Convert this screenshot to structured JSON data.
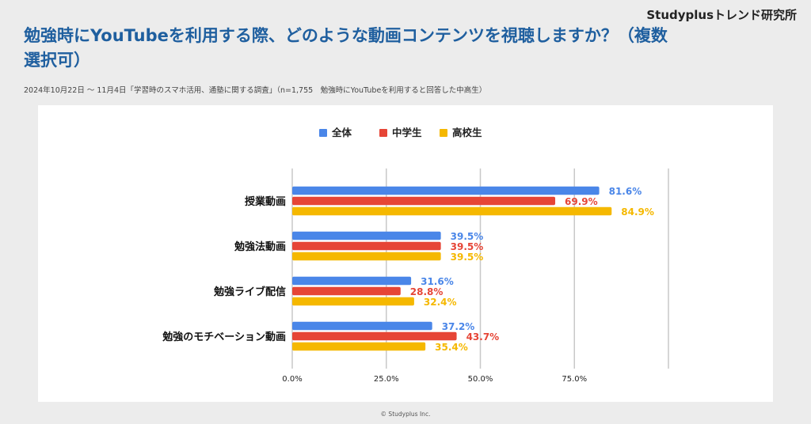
{
  "brand": "Studyplusトレンド研究所",
  "title": "勉強時にYouTubeを利用する際、どのような動画コンテンツを視聴しますか？（複数選択可）",
  "subtitle": "2024年10月22日 〜 11月4日「学習時のスマホ活用、通塾に関する調査」（n=1,755　勉強時にYouTubeを利用すると回答した中高生）",
  "footer": "© Studyplus Inc.",
  "colors": {
    "all": "#4a86e8",
    "junior": "#e64536",
    "senior": "#f5b800"
  },
  "chart_data": {
    "type": "bar",
    "orientation": "horizontal",
    "categories": [
      "授業動画",
      "勉強法動画",
      "勉強ライブ配信",
      "勉強のモチベーション動画"
    ],
    "series": [
      {
        "name": "全体",
        "values": [
          81.6,
          39.5,
          31.6,
          37.2
        ]
      },
      {
        "name": "中学生",
        "values": [
          69.9,
          39.5,
          28.8,
          43.7
        ]
      },
      {
        "name": "高校生",
        "values": [
          84.9,
          39.5,
          32.4,
          35.4
        ]
      }
    ],
    "xlim": [
      0,
      100
    ],
    "xticks": [
      0,
      25,
      50,
      75
    ],
    "xtick_labels": [
      "0.0%",
      "25.0%",
      "50.0%",
      "75.0%"
    ],
    "value_suffix": "%",
    "grid": true,
    "legend": "top-center"
  }
}
